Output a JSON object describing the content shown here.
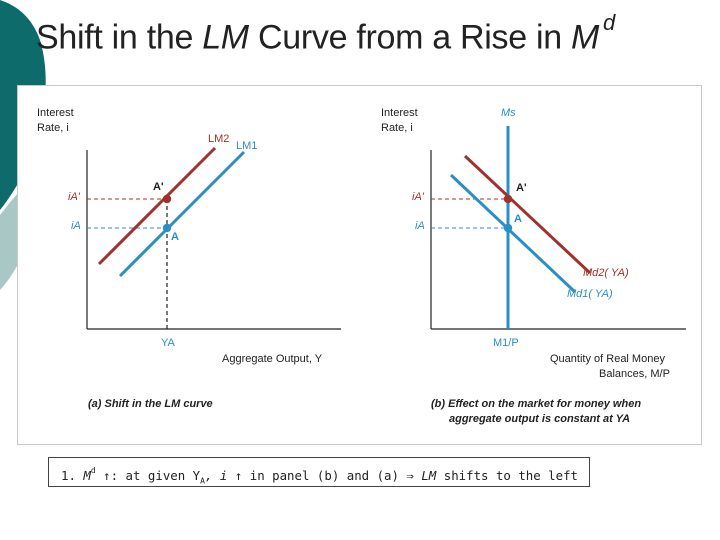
{
  "title": {
    "prefix": "Shift in the ",
    "lm": "LM",
    "middle": " Curve from a Rise in ",
    "m": "M",
    "sup": "d"
  },
  "colors": {
    "lm1": "#2a8fc6",
    "lm2": "#a0322e",
    "point_a": "#2a8fc6",
    "point_a_prime": "#a0322e",
    "axis": "#222222",
    "accent": "#0e6b6b"
  },
  "panel_a": {
    "y_axis_label_1": "Interest",
    "y_axis_label_2": "Rate, i",
    "x_axis_label": "Aggregate Output, Y",
    "curve_lm2": "LM2",
    "curve_lm1": "LM1",
    "point_a": "A",
    "point_a_prime": "A'",
    "tick_ia_prime": "iA'",
    "tick_ia": "iA",
    "tick_ya": "YA",
    "caption": "(a) Shift in the LM curve"
  },
  "panel_b": {
    "y_axis_label_1": "Interest",
    "y_axis_label_2": "Rate, i",
    "curve_ms": "Ms",
    "point_a": "A",
    "point_a_prime": "A'",
    "tick_ia_prime": "iA'",
    "tick_ia": "iA",
    "curve_md2": "Md2( YA)",
    "curve_md1": "Md1( YA)",
    "tick_m1p": "M1/P",
    "x_axis_label_1": "Quantity of Real Money",
    "x_axis_label_2": "Balances, M/P",
    "caption_1": "(b) Effect on the market for money when",
    "caption_2": "aggregate output is constant at YA"
  },
  "note": {
    "number": "1.",
    "m": "M",
    "sup": "d",
    "arrow1": "↑",
    "text1": ": at given Y",
    "sub": "A",
    "text2": ", i ",
    "arrow2": "↑",
    "text3": " in panel (b) and (a) ",
    "implies": "⇒",
    "lm": " LM",
    "text4": " shifts to the left"
  }
}
